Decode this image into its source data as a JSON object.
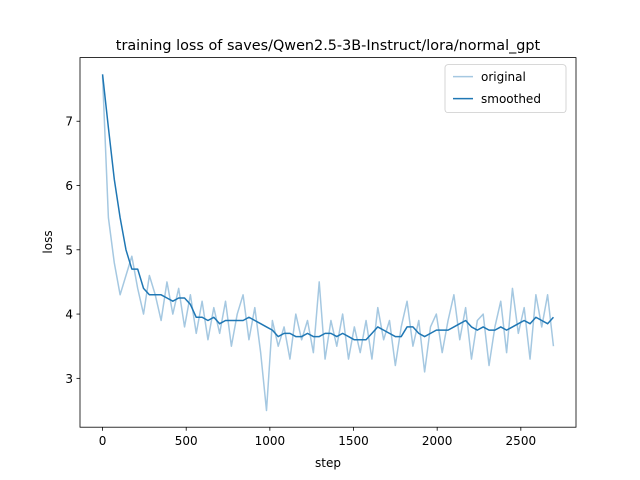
{
  "chart_data": {
    "type": "line",
    "title": "training loss of saves/Qwen2.5-3B-Instruct/lora/normal_gpt",
    "x_label": "step",
    "y_label": "loss",
    "x": [
      0,
      35,
      70,
      105,
      140,
      175,
      210,
      245,
      280,
      315,
      350,
      385,
      420,
      455,
      490,
      525,
      560,
      595,
      630,
      665,
      700,
      735,
      770,
      805,
      840,
      875,
      910,
      945,
      980,
      1015,
      1050,
      1085,
      1120,
      1155,
      1190,
      1225,
      1260,
      1295,
      1330,
      1365,
      1400,
      1435,
      1470,
      1505,
      1540,
      1575,
      1610,
      1645,
      1680,
      1715,
      1750,
      1785,
      1820,
      1855,
      1890,
      1925,
      1960,
      1995,
      2030,
      2065,
      2100,
      2135,
      2170,
      2205,
      2240,
      2275,
      2310,
      2345,
      2380,
      2415,
      2450,
      2485,
      2520,
      2555,
      2590,
      2625,
      2660,
      2695
    ],
    "series": [
      {
        "name": "original",
        "color": "#a5c8e1",
        "values": [
          7.7,
          5.5,
          4.8,
          4.3,
          4.6,
          4.9,
          4.4,
          4.0,
          4.6,
          4.3,
          3.9,
          4.5,
          4.0,
          4.4,
          3.8,
          4.3,
          3.7,
          4.2,
          3.6,
          4.1,
          3.7,
          4.2,
          3.5,
          4.0,
          4.3,
          3.6,
          4.1,
          3.4,
          2.5,
          3.9,
          3.5,
          3.8,
          3.3,
          4.0,
          3.6,
          3.9,
          3.4,
          4.5,
          3.3,
          3.9,
          3.5,
          4.0,
          3.3,
          3.8,
          3.4,
          3.9,
          3.3,
          4.1,
          3.6,
          3.9,
          3.2,
          3.8,
          4.2,
          3.5,
          3.9,
          3.1,
          3.8,
          4.0,
          3.4,
          3.9,
          4.3,
          3.6,
          4.1,
          3.3,
          3.9,
          4.0,
          3.2,
          3.8,
          4.2,
          3.4,
          4.4,
          3.7,
          4.1,
          3.3,
          4.3,
          3.8,
          4.3,
          3.5
        ]
      },
      {
        "name": "smoothed",
        "color": "#1f77b4",
        "values": [
          7.73,
          6.9,
          6.1,
          5.5,
          5.0,
          4.7,
          4.7,
          4.4,
          4.3,
          4.3,
          4.3,
          4.25,
          4.2,
          4.25,
          4.25,
          4.15,
          3.95,
          3.95,
          3.9,
          3.95,
          3.85,
          3.9,
          3.9,
          3.9,
          3.9,
          3.95,
          3.9,
          3.85,
          3.8,
          3.75,
          3.65,
          3.7,
          3.7,
          3.65,
          3.65,
          3.7,
          3.65,
          3.65,
          3.7,
          3.7,
          3.65,
          3.7,
          3.65,
          3.6,
          3.6,
          3.6,
          3.7,
          3.8,
          3.75,
          3.7,
          3.65,
          3.65,
          3.8,
          3.8,
          3.7,
          3.65,
          3.7,
          3.75,
          3.75,
          3.75,
          3.8,
          3.85,
          3.9,
          3.8,
          3.75,
          3.8,
          3.75,
          3.75,
          3.8,
          3.75,
          3.8,
          3.85,
          3.9,
          3.85,
          3.95,
          3.9,
          3.85,
          3.95
        ]
      }
    ],
    "xlim": [
      -134.75,
      2829.75
    ],
    "xticks": [
      0,
      500,
      1000,
      1500,
      2000,
      2500
    ],
    "ylim": [
      2.24,
      7.99
    ],
    "yticks": [
      3,
      4,
      5,
      6,
      7
    ],
    "legend": "upper right",
    "grid": false
  }
}
